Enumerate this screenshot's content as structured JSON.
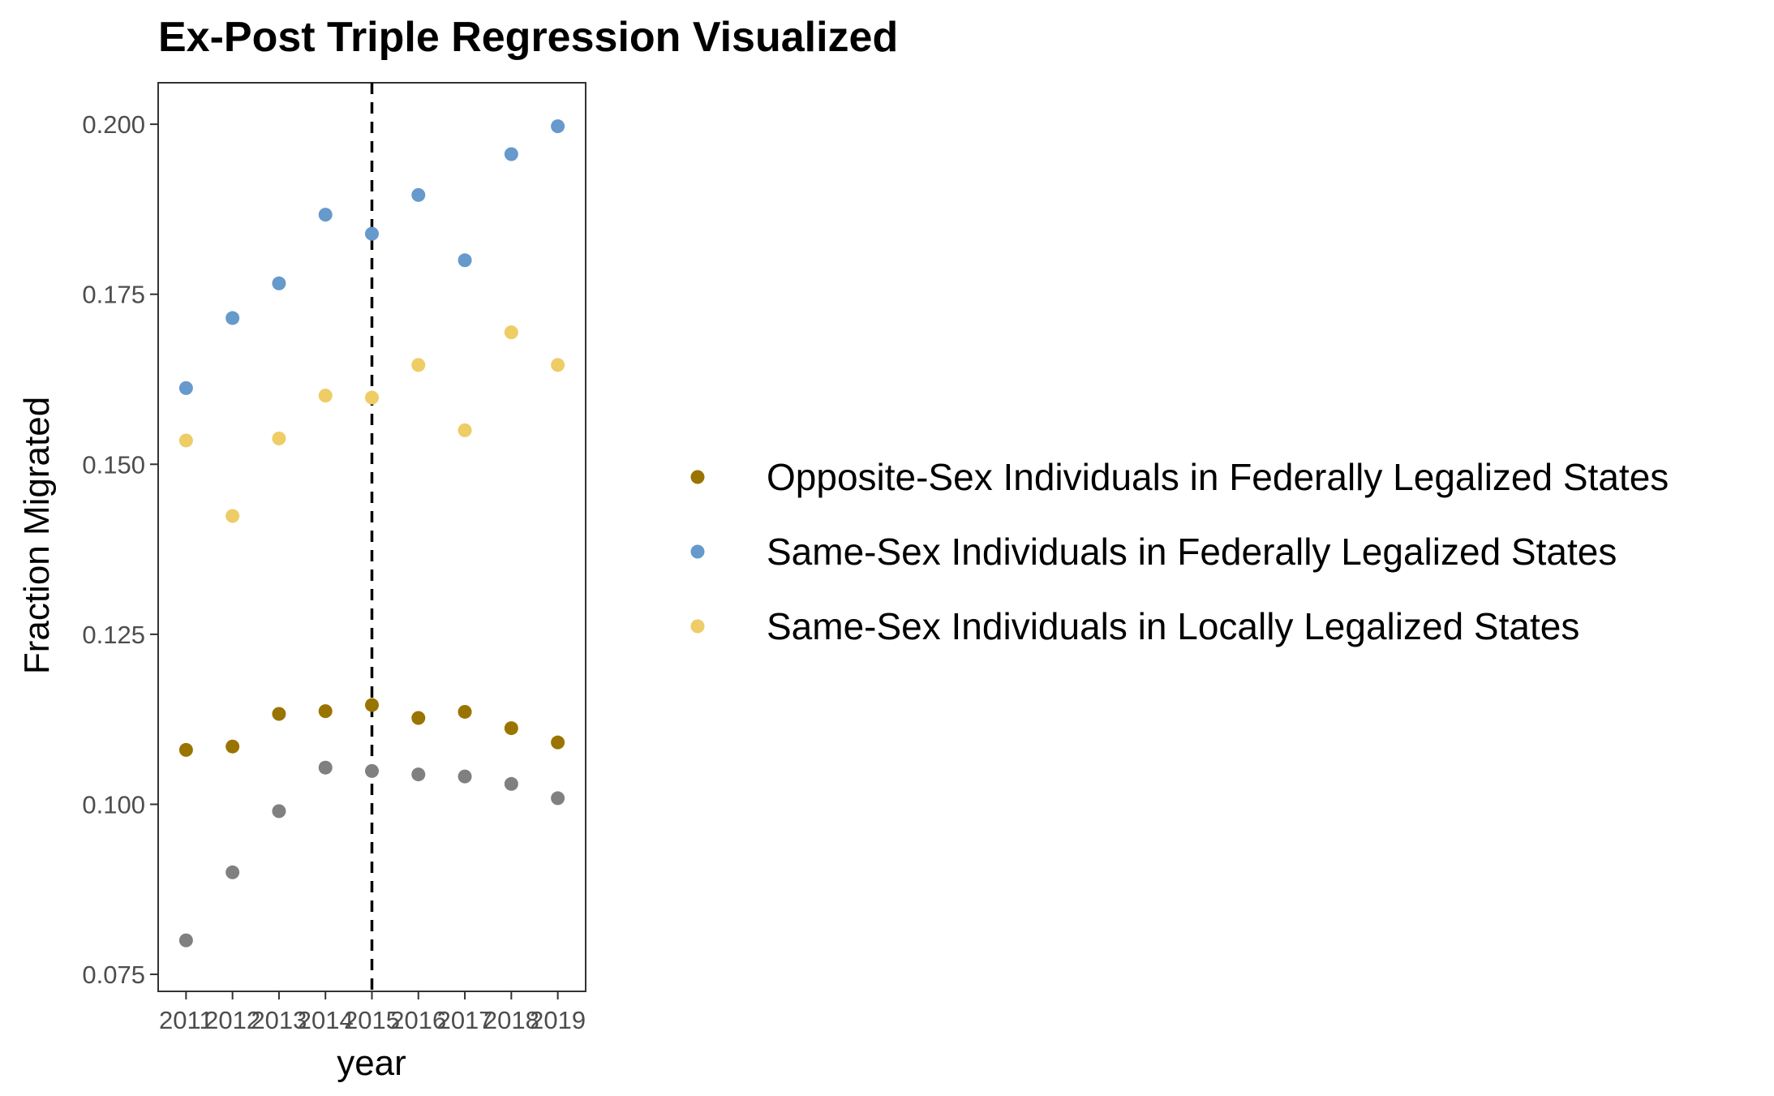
{
  "chart_data": {
    "type": "scatter",
    "title": "Ex-Post Triple Regression Visualized",
    "xlabel": "year",
    "ylabel": "Fraction Migrated",
    "x": [
      2011,
      2012,
      2013,
      2014,
      2015,
      2016,
      2017,
      2018,
      2019
    ],
    "x_tick_labels": [
      "2011",
      "2012",
      "2013",
      "2014",
      "2015",
      "2016",
      "2017",
      "2018",
      "2019"
    ],
    "ylim": [
      0.075,
      0.2
    ],
    "y_ticks": [
      0.075,
      0.1,
      0.125,
      0.15,
      0.175,
      0.2
    ],
    "y_tick_labels": [
      "0.075",
      "0.100",
      "0.125",
      "0.150",
      "0.175",
      "0.200"
    ],
    "vline_x": 2015,
    "grid": false,
    "legend_position": "right",
    "series": [
      {
        "name": "Opposite-Sex Individuals in Federally Legalized States",
        "color": "#9a7400",
        "in_legend": true,
        "values": [
          0.108,
          0.1085,
          0.1133,
          0.1137,
          0.1146,
          0.1127,
          0.1136,
          0.1112,
          0.1091
        ]
      },
      {
        "name": "Same-Sex Individuals in Federally Legalized States",
        "color": "#6699cc",
        "in_legend": true,
        "values": [
          0.1612,
          0.1715,
          0.1766,
          0.1867,
          0.1839,
          0.1896,
          0.18,
          0.1956,
          0.1997
        ]
      },
      {
        "name": "Same-Sex Individuals in Locally Legalized States",
        "color": "#eecc66",
        "in_legend": true,
        "values": [
          0.1535,
          0.1424,
          0.1538,
          0.1601,
          0.1598,
          0.1646,
          0.155,
          0.1694,
          0.1646
        ]
      },
      {
        "color": "#808080",
        "in_legend": false,
        "values": [
          0.08,
          0.09,
          0.099,
          0.1054,
          0.1049,
          0.1044,
          0.1041,
          0.103,
          0.1009
        ]
      }
    ]
  }
}
